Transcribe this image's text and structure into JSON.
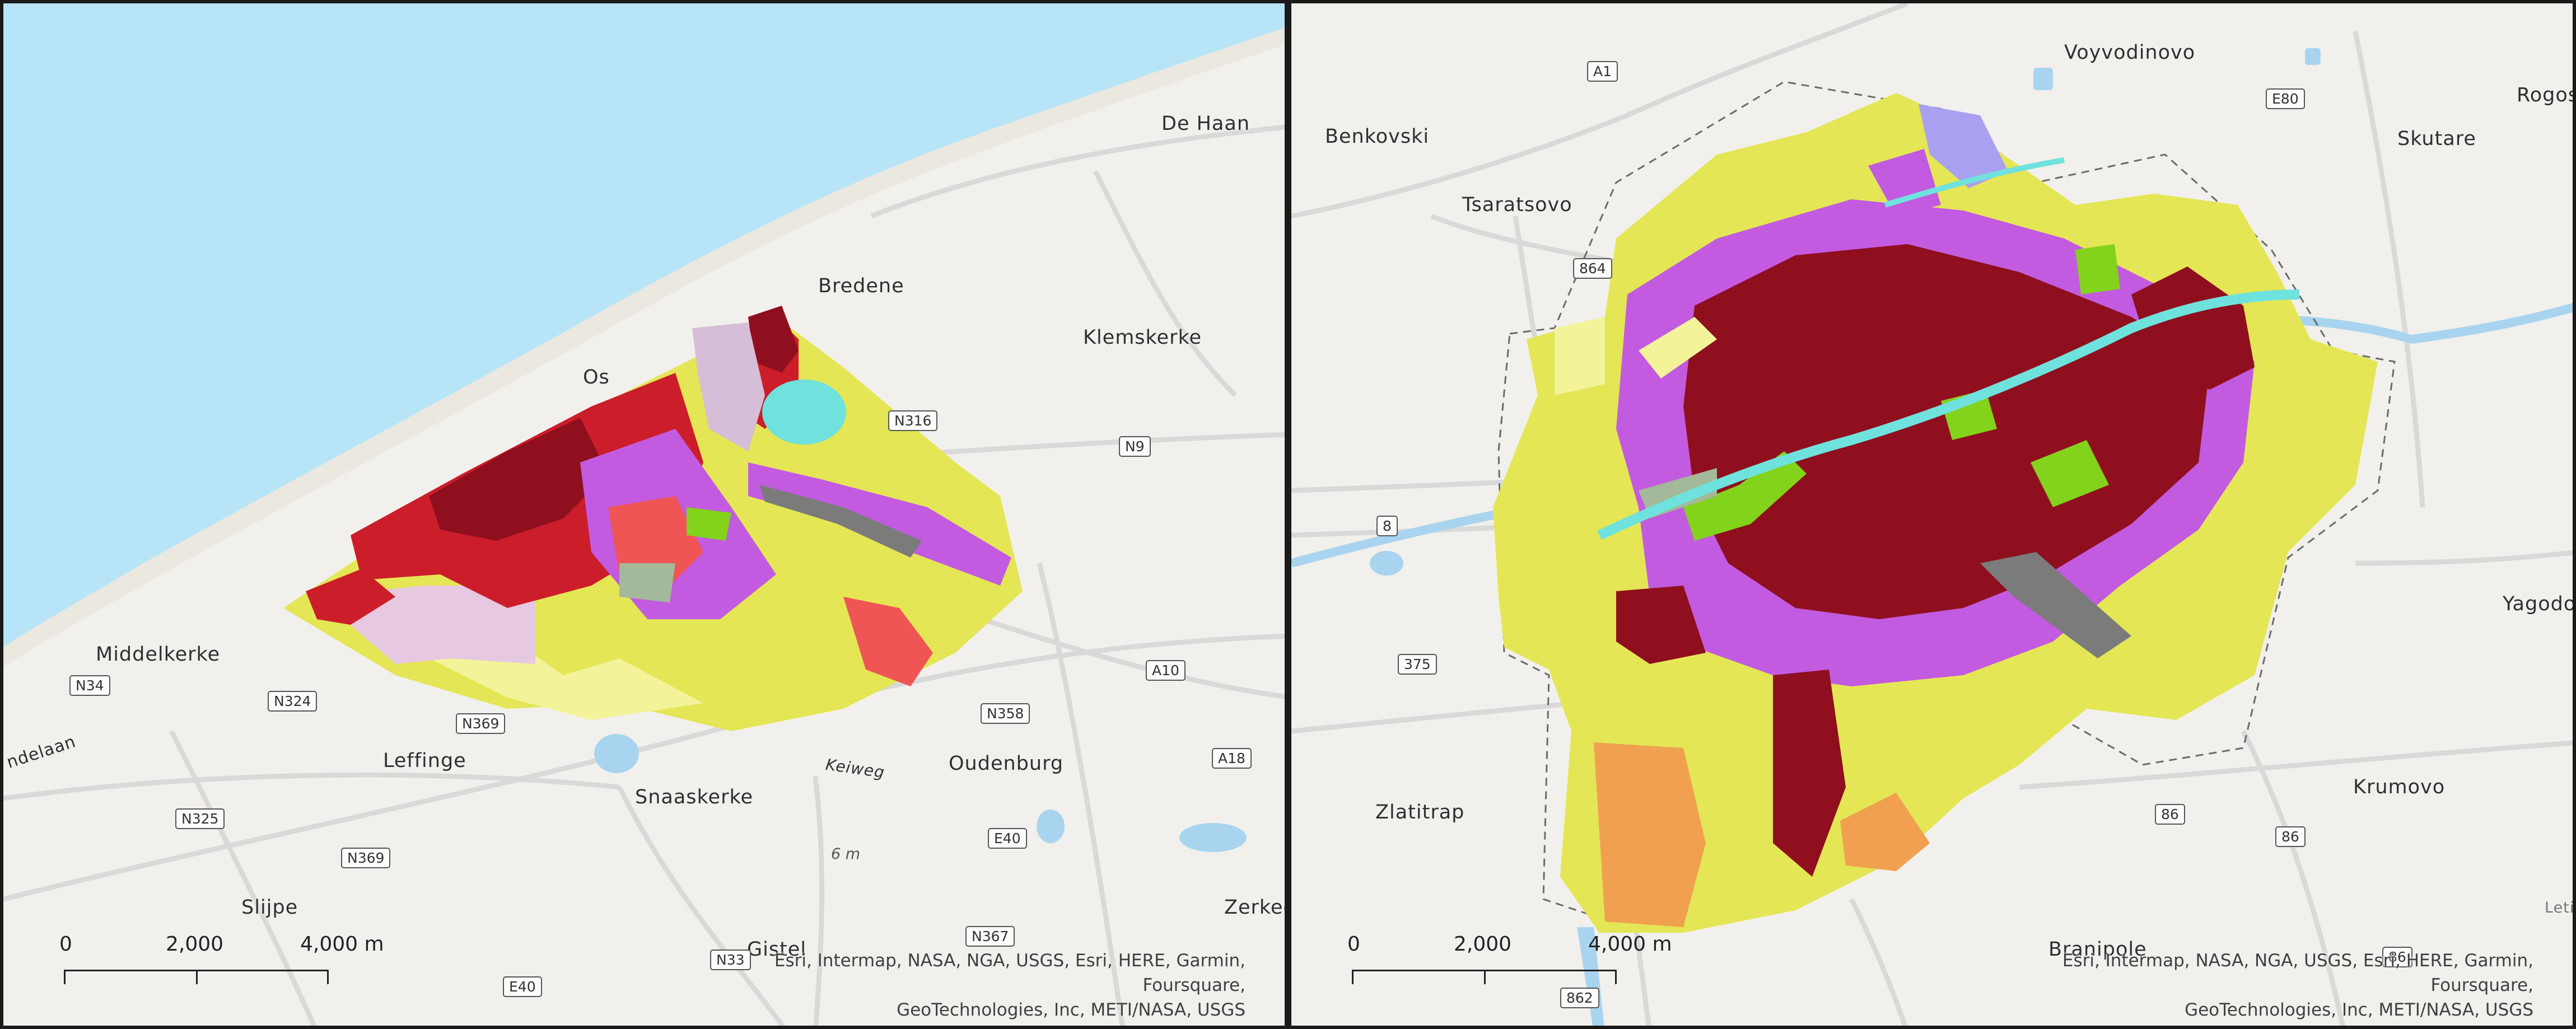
{
  "maps": [
    {
      "region": "left",
      "places": [
        "De Haan",
        "Bredene",
        "Os",
        "Klemskerke",
        "Middelkerke",
        "Leffinge",
        "Snaaskerke",
        "Oudenburg",
        "Slijpe",
        "Gistel",
        "Zerkeg",
        "ndelaan",
        "Keiweg"
      ],
      "road_shields": [
        "N316",
        "N9",
        "N34",
        "N324",
        "N369",
        "N325",
        "A10",
        "N358",
        "A18",
        "E40",
        "N369",
        "N367",
        "E40",
        "N33"
      ],
      "elevation": "6 m",
      "scale": {
        "zero": "0",
        "mid": "2,000",
        "end": "4,000 m"
      },
      "attribution": [
        "Esri, Intermap, NASA, NGA, USGS, Esri, HERE, Garmin, Foursquare,",
        "GeoTechnologies, Inc, METI/NASA, USGS"
      ]
    },
    {
      "region": "right",
      "places": [
        "Voyvodinovo",
        "Benkovski",
        "Tsaratsovo",
        "Skutare",
        "Rogosh",
        "Yagodo",
        "Krumovo",
        "Zlatitrap",
        "Branipole",
        "Leti"
      ],
      "road_shields": [
        "A1",
        "E80",
        "864",
        "8",
        "375",
        "86",
        "86",
        "862",
        "86"
      ],
      "scale": {
        "zero": "0",
        "mid": "2,000",
        "end": "4,000 m"
      },
      "attribution": [
        "Esri, Intermap, NASA, NGA, USGS, Esri, HERE, Garmin, Foursquare,",
        "GeoTechnologies, Inc, METI/NASA, USGS"
      ]
    }
  ],
  "colors": {
    "sea": "#b8e4f7",
    "land": "#f2f0ec",
    "road": "#d6d6d6",
    "water": "#a9d4ef",
    "dense_urban": "#8f0f1f",
    "urban": "#cc1d2a",
    "light_urban": "#f05555",
    "industrial": "#c25be0",
    "agri_yellow": "#e4e655",
    "pale_yellow": "#f3f39a",
    "green_urban": "#83d21c",
    "grey_infra": "#7b7b7b",
    "pale_pink": "#e6c8e0",
    "lavender": "#a9a1f0",
    "cyan_water": "#6fe2dd",
    "orange": "#f0a04f",
    "sage": "#a4b89a"
  }
}
